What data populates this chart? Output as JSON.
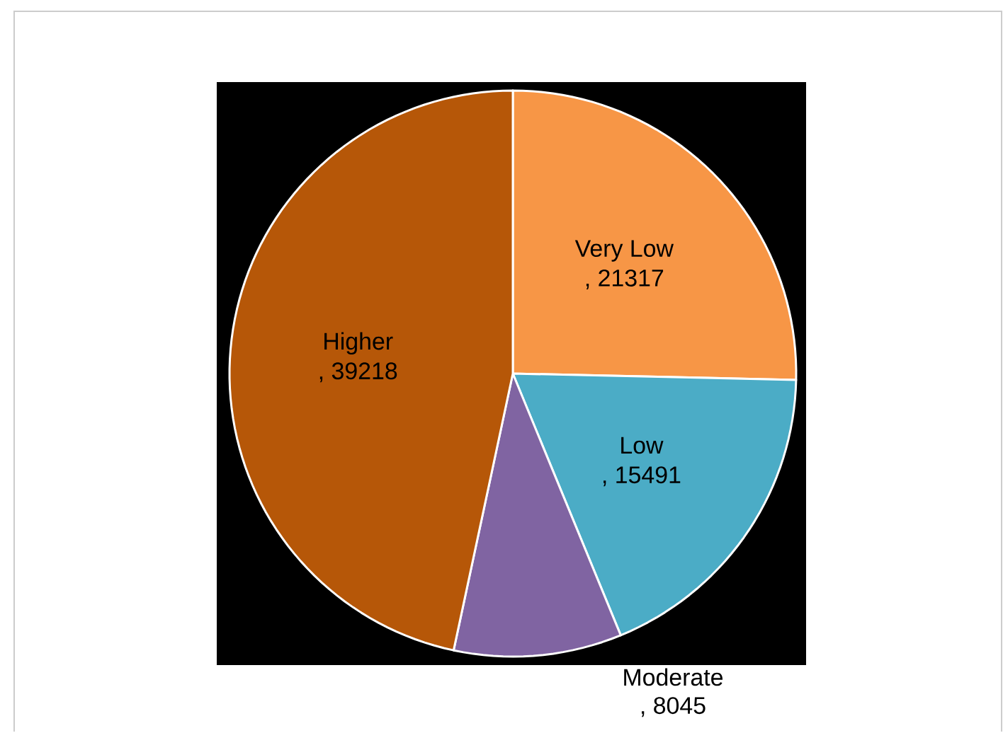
{
  "chart_data": {
    "type": "pie",
    "categories": [
      "Very Low",
      "Low",
      "Moderate",
      "Higher"
    ],
    "values": [
      21317,
      15491,
      8045,
      39218
    ],
    "colors": [
      "#f79646",
      "#4bacc6",
      "#8064a2",
      "#b65708"
    ],
    "value_labels": [
      ", 21317",
      ", 15491",
      ", 8045",
      ", 39218"
    ]
  }
}
